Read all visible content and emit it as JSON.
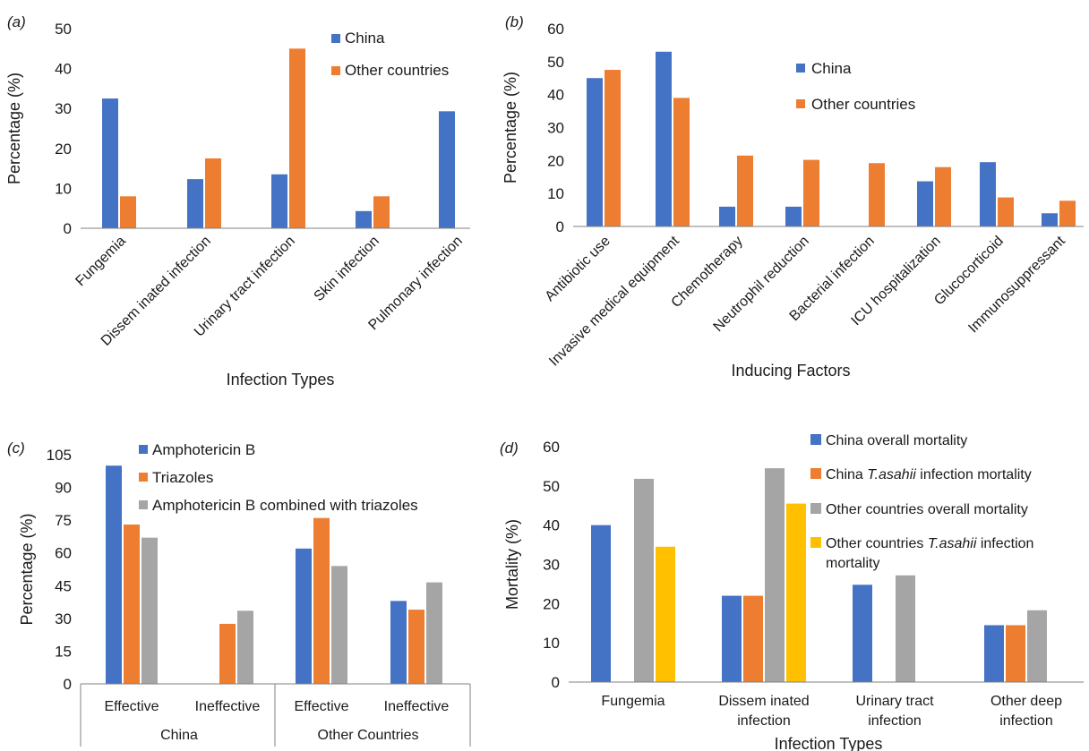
{
  "colors": {
    "blue": "#4472C4",
    "orange": "#ED7D31",
    "gray": "#A5A5A5",
    "yellow": "#FFC000",
    "axis": "#808080",
    "grid": "#d9d9d9"
  },
  "chart_data": [
    {
      "panel_label": "(a)",
      "type": "bar",
      "title": "",
      "xlabel": "Infection Types",
      "ylabel": "Percentage (%)",
      "ylim": [
        0,
        50
      ],
      "yticks": [
        0,
        10,
        20,
        30,
        40,
        50
      ],
      "grid": false,
      "legend_position": "top-right",
      "categories": [
        "Fungemia",
        "Dissem inated infection",
        "Urinary tract infection",
        "Skin infection",
        "Pulmonary infection"
      ],
      "series": [
        {
          "name": "China",
          "color": "#4472C4",
          "values": [
            32.5,
            12.3,
            13.5,
            4.3,
            29.3
          ]
        },
        {
          "name": "Other countries",
          "color": "#ED7D31",
          "values": [
            8.0,
            17.5,
            45.0,
            8.0,
            0
          ]
        }
      ]
    },
    {
      "panel_label": "(b)",
      "type": "bar",
      "title": "",
      "xlabel": "Inducing Factors",
      "ylabel": "Percentage (%)",
      "ylim": [
        0,
        60
      ],
      "yticks": [
        0,
        10,
        20,
        30,
        40,
        50,
        60
      ],
      "grid": false,
      "legend_position": "top-right",
      "categories": [
        "Antibiotic use",
        "Invasive medical equipment",
        "Chemotherapy",
        "Neutrophil reduction",
        "Bacterial infection",
        "ICU hospitalization",
        "Glucocorticoid",
        "Immunosuppressant"
      ],
      "series": [
        {
          "name": "China",
          "color": "#4472C4",
          "values": [
            45.0,
            53.0,
            6.0,
            6.0,
            0,
            13.7,
            19.5,
            4.0
          ]
        },
        {
          "name": "Other countries",
          "color": "#ED7D31",
          "values": [
            47.5,
            39.0,
            21.5,
            20.2,
            19.2,
            18.0,
            8.8,
            7.8
          ]
        }
      ]
    },
    {
      "panel_label": "(c)",
      "type": "bar",
      "title": "",
      "xlabel": "",
      "ylabel": "Percentage (%)",
      "ylim": [
        0,
        105
      ],
      "yticks": [
        0,
        15,
        30,
        45,
        60,
        75,
        90,
        105
      ],
      "grid": false,
      "legend_position": "top-right",
      "categories": [
        "Effective",
        "Ineffective",
        "Effective",
        "Ineffective"
      ],
      "groups": [
        "China",
        "Other Countries"
      ],
      "series": [
        {
          "name": "Amphotericin B",
          "color": "#4472C4",
          "values": [
            100,
            0,
            62,
            38
          ]
        },
        {
          "name": "Triazoles",
          "color": "#ED7D31",
          "values": [
            73,
            27.5,
            76,
            34
          ]
        },
        {
          "name": "Amphotericin B combined with triazoles",
          "color": "#A5A5A5",
          "values": [
            67,
            33.5,
            54,
            46.5
          ]
        }
      ]
    },
    {
      "panel_label": "(d)",
      "type": "bar",
      "title": "",
      "xlabel": "Infection Types",
      "ylabel": "Mortality (%)",
      "ylim": [
        0,
        60
      ],
      "yticks": [
        0,
        10,
        20,
        30,
        40,
        50,
        60
      ],
      "grid": false,
      "legend_position": "top-right",
      "categories": [
        [
          "Fungemia"
        ],
        [
          "Dissem inated",
          "infection"
        ],
        [
          "Urinary tract",
          "infection"
        ],
        [
          "Other deep",
          "infection"
        ]
      ],
      "series": [
        {
          "name": [
            "China overall mortality"
          ],
          "color": "#4472C4",
          "values": [
            40,
            22,
            24.8,
            14.5
          ]
        },
        {
          "name": [
            "China ",
            "T.asahii",
            " infection mortality"
          ],
          "color": "#ED7D31",
          "values": [
            0,
            22,
            0,
            14.5
          ]
        },
        {
          "name": [
            "Other countries overall mortality"
          ],
          "color": "#A5A5A5",
          "values": [
            51.8,
            54.5,
            27.2,
            18.3
          ]
        },
        {
          "name": [
            "Other countries ",
            "T.asahii",
            " infection",
            "mortality"
          ],
          "color": "#FFC000",
          "values": [
            34.5,
            45.5,
            0,
            0
          ]
        }
      ]
    }
  ]
}
